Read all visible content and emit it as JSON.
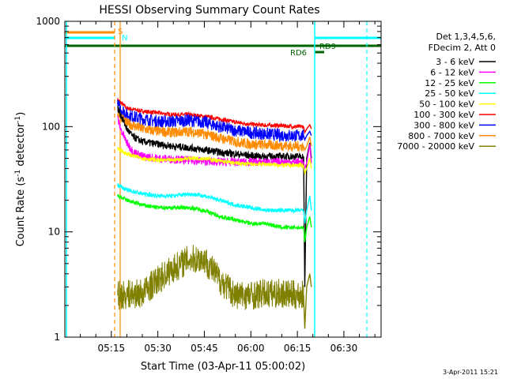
{
  "chart_data": {
    "type": "line",
    "title": "HESSI Observing Summary Count Rates",
    "xlabel": "Start Time (03-Apr-11 05:00:02)",
    "ylabel_main": "Count Rate (s",
    "ylabel_sup1": "-1",
    "ylabel_mid": " detector",
    "ylabel_sup2": "-1",
    "ylabel_end": ")",
    "yscale": "log",
    "xlim_minutes": [
      0,
      102
    ],
    "ylim": [
      1,
      1000
    ],
    "x_ticks": [
      {
        "minute": 15,
        "label": "05:15"
      },
      {
        "minute": 30,
        "label": "05:30"
      },
      {
        "minute": 45,
        "label": "05:45"
      },
      {
        "minute": 60,
        "label": "06:00"
      },
      {
        "minute": 75,
        "label": "06:15"
      },
      {
        "minute": 90,
        "label": "06:30"
      }
    ],
    "y_ticks": [
      {
        "value": 1,
        "label": "1"
      },
      {
        "value": 10,
        "label": "10"
      },
      {
        "value": 100,
        "label": "100"
      },
      {
        "value": 1000,
        "label": "1000"
      }
    ],
    "legend": {
      "placement": "right",
      "header1": "Det 1,3,4,5,6,",
      "header2": "FDecim 2, Att 0",
      "entries": [
        {
          "label": "3 - 6 keV",
          "color": "#000000"
        },
        {
          "label": "6 - 12 keV",
          "color": "#ff00ff"
        },
        {
          "label": "12 - 25 keV",
          "color": "#00ff00"
        },
        {
          "label": "25 - 50 keV",
          "color": "#00ffff"
        },
        {
          "label": "50 - 100 keV",
          "color": "#ffff00"
        },
        {
          "label": "100 - 300 keV",
          "color": "#ff0000"
        },
        {
          "label": "300 - 800 keV",
          "color": "#0000ff"
        },
        {
          "label": "800 - 7000 keV",
          "color": "#ff8c00"
        },
        {
          "label": "7000 - 20000 keV",
          "color": "#808000"
        }
      ]
    },
    "series": [
      {
        "color": "#ff0000",
        "x": [
          17,
          20,
          25,
          30,
          35,
          40,
          45,
          50,
          55,
          60,
          65,
          70,
          74,
          77
        ],
        "y": [
          180,
          150,
          140,
          135,
          130,
          130,
          125,
          118,
          110,
          105,
          103,
          102,
          100,
          100
        ]
      },
      {
        "color": "#0000ff",
        "x": [
          17,
          20,
          25,
          30,
          35,
          40,
          45,
          50,
          55,
          60,
          65,
          70,
          74,
          77
        ],
        "y": [
          160,
          130,
          118,
          112,
          112,
          115,
          110,
          100,
          92,
          88,
          85,
          83,
          82,
          82
        ]
      },
      {
        "color": "#ff8c00",
        "x": [
          17,
          20,
          25,
          30,
          35,
          40,
          45,
          50,
          55,
          60,
          65,
          70,
          74,
          77
        ],
        "y": [
          135,
          108,
          95,
          90,
          88,
          90,
          85,
          78,
          72,
          68,
          67,
          66,
          65,
          65
        ]
      },
      {
        "color": "#000000",
        "x": [
          17,
          18,
          20,
          22,
          25,
          30,
          35,
          40,
          45,
          50,
          55,
          60,
          65,
          70,
          74,
          77
        ],
        "y": [
          150,
          130,
          95,
          80,
          72,
          68,
          65,
          63,
          60,
          57,
          55,
          53,
          52,
          52,
          52,
          52
        ]
      },
      {
        "color": "#ff00ff",
        "x": [
          17,
          18,
          20,
          22,
          25,
          30,
          35,
          40,
          45,
          50,
          55,
          60,
          65,
          70,
          74,
          77
        ],
        "y": [
          120,
          95,
          70,
          58,
          52,
          50,
          49,
          48,
          47,
          46,
          46,
          46,
          46,
          46,
          46,
          46
        ]
      },
      {
        "color": "#ffff00",
        "x": [
          17,
          20,
          25,
          30,
          35,
          40,
          45,
          50,
          55,
          60,
          65,
          70,
          74,
          77
        ],
        "y": [
          62,
          55,
          50,
          48,
          48,
          50,
          50,
          47,
          45,
          44,
          44,
          43,
          43,
          43
        ]
      },
      {
        "color": "#00ffff",
        "x": [
          17,
          20,
          25,
          30,
          35,
          40,
          45,
          50,
          55,
          60,
          65,
          70,
          74,
          77
        ],
        "y": [
          28,
          25,
          23,
          22,
          22,
          23,
          22,
          20,
          18,
          17,
          16,
          16,
          16,
          16
        ]
      },
      {
        "color": "#00ff00",
        "x": [
          17,
          20,
          25,
          30,
          35,
          40,
          45,
          50,
          55,
          60,
          65,
          70,
          74,
          77
        ],
        "y": [
          22,
          20,
          18,
          17,
          17,
          17,
          16,
          14,
          13,
          12,
          12,
          11,
          11,
          11
        ]
      },
      {
        "color": "#808000",
        "x": [
          17,
          25,
          30,
          35,
          40,
          45,
          50,
          55,
          60,
          65,
          70,
          74,
          77
        ],
        "y": [
          2.5,
          2.6,
          3.5,
          4.5,
          5.5,
          5.5,
          3.5,
          2.5,
          2.5,
          2.6,
          2.6,
          2.5,
          2.5
        ]
      }
    ],
    "annotations": [
      {
        "label": "S",
        "color": "#ff8c00"
      },
      {
        "label": "N",
        "color": "#00ffff"
      },
      {
        "label": "RD6",
        "color": "#006400"
      },
      {
        "label": "RD9",
        "color": "#006400"
      }
    ],
    "timestamp": "3-Apr-2011 15:21"
  }
}
